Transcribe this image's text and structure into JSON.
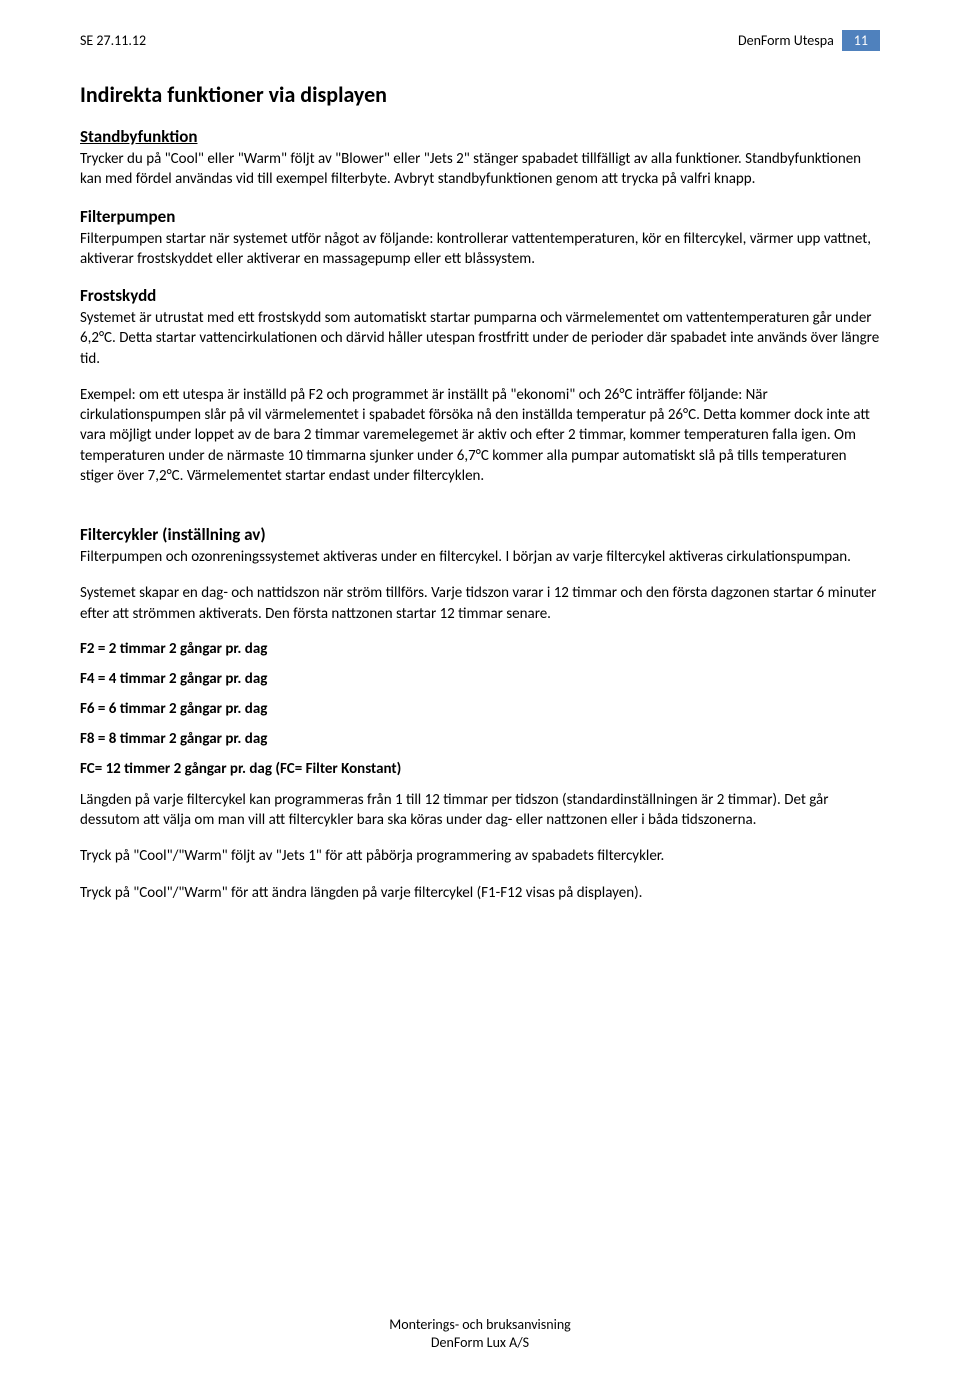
{
  "header": {
    "left": "SE 27.11.12",
    "rightTitle": "DenForm Utespa",
    "pageNumber": "11",
    "badgeBg": "#4f81bd",
    "badgeColor": "#ffffff"
  },
  "title": "Indirekta funktioner via displayen",
  "sections": {
    "standby": {
      "heading": "Standbyfunktion",
      "body": "Trycker du på \"Cool\" eller \"Warm\" följt av \"Blower\" eller \"Jets 2\" stänger spabadet tillfälligt av alla funktioner. Standbyfunktionen kan med fördel användas vid till exempel filterbyte. Avbryt standbyfunktionen genom att trycka på valfri knapp."
    },
    "filterpump": {
      "heading": "Filterpumpen",
      "body": "Filterpumpen startar när systemet utför något av följande: kontrollerar vattentemperaturen, kör en filtercykel, värmer upp vattnet, aktiverar frostskyddet eller aktiverar en massagepump eller ett blåssystem."
    },
    "frost": {
      "heading": "Frostskydd",
      "body1": "Systemet är utrustat med ett frostskydd som automatiskt startar pumparna och värmelementet om vattentemperaturen går under 6,2°C. Detta startar vattencirkulationen och därvid håller utespan frostfritt under de perioder där spabadet inte används över längre tid.",
      "body2": "Exempel: om ett utespa är inställd på F2 och programmet är inställt på \"ekonomi\" och 26°C inträffer följande: När cirkulationspumpen slår på vil värmelementet i spabadet försöka nå den inställda temperatur på 26°C. Detta kommer dock inte att vara möjligt under loppet av de bara 2 timmar varemelegemet är aktiv och efter 2 timmar, kommer temperaturen falla igen. Om temperaturen under de närmaste 10 timmarna sjunker under 6,7°C kommer alla pumpar automatiskt slå på tills temperaturen stiger över 7,2°C. Värmelementet startar endast under filtercyklen."
    },
    "filtercycles": {
      "heading": "Filtercykler (inställning av)",
      "body1": "Filterpumpen och ozonreningssystemet aktiveras under en filtercykel. I början av varje filtercykel aktiveras cirkulationspumpan.",
      "body2": "Systemet skapar en dag- och nattidszon när ström tillförs. Varje tidszon varar i 12 timmar och den första dagzonen startar 6 minuter efter att strömmen aktiverats. Den första nattzonen startar 12 timmar senare.",
      "list": {
        "f2": "F2  =   2 timmar 2 gångar pr. dag",
        "f4": "F4  =   4 timmar 2 gångar pr. dag",
        "f6": "F6  =   6 timmar 2 gångar pr. dag",
        "f8": "F8  =   8 timmar 2 gångar pr. dag",
        "fc": "FC= 12 timmer 2 gångar pr. dag  (FC= Filter Konstant)"
      },
      "body3": "Längden på varje filtercykel kan programmeras från 1 till 12 timmar per tidszon (standardinställningen är 2 timmar). Det går dessutom att välja om man vill att filtercykler bara ska köras under dag- eller nattzonen eller i båda tidszonerna.",
      "body4": "Tryck på \"Cool\"/\"Warm\" följt av \"Jets 1\" för att påbörja programmering av spabadets filtercykler.",
      "body5": "Tryck på \"Cool\"/\"Warm\" för att ändra längden på varje filtercykel (F1-F12 visas på displayen)."
    }
  },
  "footer": {
    "line1": "Monterings- och bruksanvisning",
    "line2": "DenForm Lux A/S"
  }
}
